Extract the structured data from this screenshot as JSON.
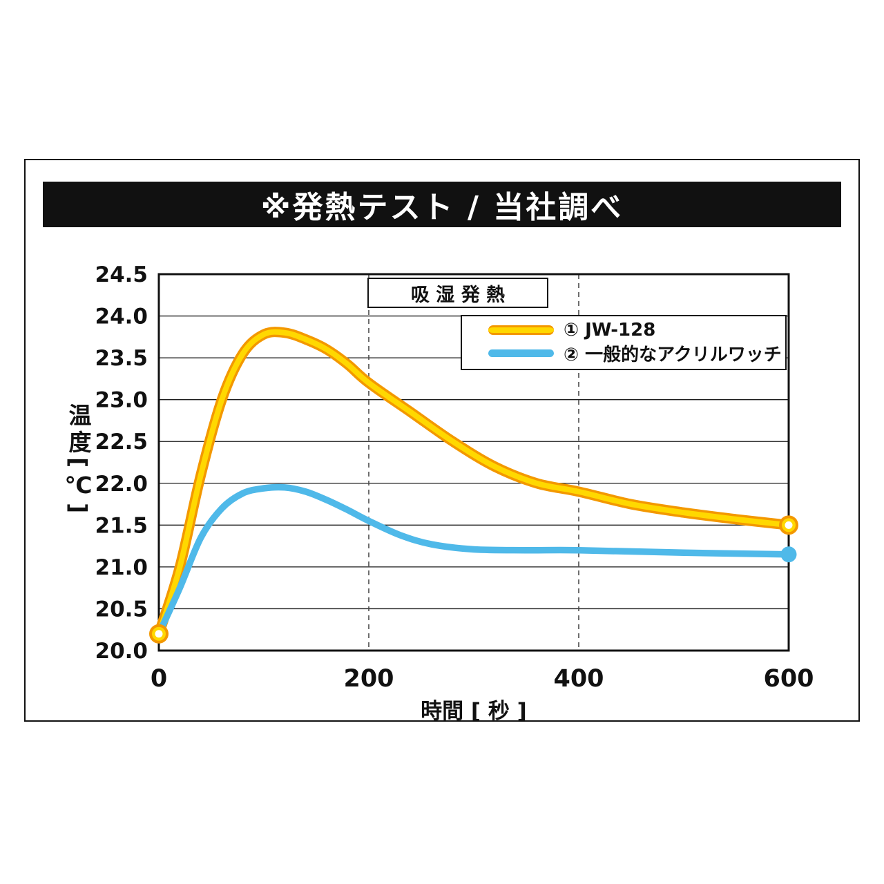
{
  "header": {
    "title": "※発熱テスト / 当社調べ"
  },
  "chart_data": {
    "type": "line",
    "inner_title": "吸 湿 発 熱",
    "xlabel": "時間 [ 秒 ]",
    "ylabel": "温度[℃]",
    "xlim": [
      0,
      600
    ],
    "ylim": [
      20.0,
      24.5
    ],
    "x_ticks": [
      0,
      200,
      400,
      600
    ],
    "y_ticks": [
      20.0,
      20.5,
      21.0,
      21.5,
      22.0,
      22.5,
      23.0,
      23.5,
      24.0,
      24.5
    ],
    "x_gridlines_dashed": [
      200,
      400
    ],
    "grid": "horizontal solid lines every 0.5; vertical dashed lines at 200 and 400",
    "legend_position": "top-right inside plot",
    "series": [
      {
        "id": "jw128",
        "label": "① JW-128",
        "color": "#FFD800",
        "outline_color": "#F39800",
        "points": [
          [
            0,
            20.2
          ],
          [
            20,
            21.0
          ],
          [
            40,
            22.1
          ],
          [
            60,
            23.0
          ],
          [
            80,
            23.55
          ],
          [
            100,
            23.78
          ],
          [
            120,
            23.8
          ],
          [
            140,
            23.72
          ],
          [
            160,
            23.6
          ],
          [
            180,
            23.42
          ],
          [
            200,
            23.2
          ],
          [
            240,
            22.85
          ],
          [
            280,
            22.5
          ],
          [
            320,
            22.2
          ],
          [
            360,
            22.0
          ],
          [
            400,
            21.9
          ],
          [
            450,
            21.75
          ],
          [
            500,
            21.65
          ],
          [
            550,
            21.57
          ],
          [
            600,
            21.5
          ]
        ]
      },
      {
        "id": "acrylic",
        "label": "② 一般的なアクリルワッチ",
        "color": "#4FB9E9",
        "points": [
          [
            0,
            20.2
          ],
          [
            20,
            20.75
          ],
          [
            40,
            21.35
          ],
          [
            60,
            21.7
          ],
          [
            80,
            21.88
          ],
          [
            100,
            21.94
          ],
          [
            120,
            21.95
          ],
          [
            140,
            21.9
          ],
          [
            160,
            21.8
          ],
          [
            180,
            21.68
          ],
          [
            200,
            21.55
          ],
          [
            230,
            21.38
          ],
          [
            260,
            21.27
          ],
          [
            300,
            21.21
          ],
          [
            350,
            21.2
          ],
          [
            400,
            21.2
          ],
          [
            500,
            21.17
          ],
          [
            600,
            21.15
          ]
        ]
      }
    ],
    "markers": [
      {
        "series": "jw128",
        "x": 0,
        "y": 20.2,
        "style": "ring"
      },
      {
        "series": "jw128",
        "x": 600,
        "y": 21.5,
        "style": "ring"
      },
      {
        "series": "acrylic",
        "x": 600,
        "y": 21.15,
        "style": "dot"
      }
    ]
  },
  "colors": {
    "title_bar_bg": "#111111",
    "title_bar_text": "#ffffff",
    "axis": "#111111",
    "gridline": "#1a1a1a",
    "dashed_gridline": "#4a4a4a",
    "series_yellow": "#FFD800",
    "series_yellow_outline": "#F39800",
    "series_blue": "#4FB9E9"
  }
}
